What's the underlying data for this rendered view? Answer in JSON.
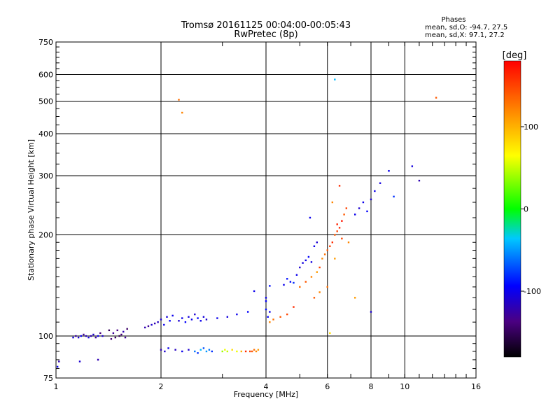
{
  "chart_data": {
    "type": "scatter",
    "title": "Tromsø 20161125 00:04:00-00:05:43",
    "subtitle": "RwPretec (8p)",
    "xlabel": "Frequency [MHz]",
    "ylabel": "Stationary phase Virtual Height [km]",
    "x_scale": "log",
    "y_scale": "log",
    "xlim": [
      1,
      16
    ],
    "ylim": [
      75,
      750
    ],
    "x_ticks": [
      1,
      2,
      4,
      6,
      8,
      10,
      16
    ],
    "x_tick_labels": [
      "1",
      "2",
      "4",
      "6",
      "8",
      "10",
      "16"
    ],
    "y_ticks": [
      75,
      100,
      200,
      300,
      400,
      500,
      600,
      750
    ],
    "y_tick_labels": [
      "75",
      "100",
      "200",
      "300",
      "400",
      "500",
      "600",
      "750"
    ],
    "grid": true,
    "legend": {
      "title": "Phases",
      "lines": [
        "mean, sd,O: -94.7, 27.5",
        "mean, sd,X:  97.1, 27.2"
      ],
      "placement": "top-right"
    },
    "colorbar": {
      "label": "[deg]",
      "range": [
        -180,
        180
      ],
      "ticks": [
        100,
        0,
        -100
      ],
      "tick_labels": [
        "100",
        "0",
        "-100"
      ],
      "colormap": "rainbow"
    },
    "series": [
      {
        "mode": "O",
        "points": [
          [
            1.02,
            84,
            -120
          ],
          [
            1.01,
            81,
            -100
          ],
          [
            1.17,
            84,
            -110
          ],
          [
            1.32,
            85,
            -120
          ],
          [
            1.12,
            99,
            -105
          ],
          [
            1.14,
            100,
            -125
          ],
          [
            1.16,
            99,
            -110
          ],
          [
            1.18,
            100,
            -100
          ],
          [
            1.2,
            101,
            -130
          ],
          [
            1.22,
            100,
            -115
          ],
          [
            1.24,
            99,
            -105
          ],
          [
            1.26,
            100,
            -120
          ],
          [
            1.28,
            101,
            -110
          ],
          [
            1.3,
            99,
            -125
          ],
          [
            1.32,
            100,
            -100
          ],
          [
            1.34,
            102,
            -140
          ],
          [
            1.36,
            100,
            -110
          ],
          [
            1.42,
            104,
            -150
          ],
          [
            1.44,
            98,
            -140
          ],
          [
            1.46,
            102,
            -130
          ],
          [
            1.48,
            99,
            -145
          ],
          [
            1.5,
            104,
            -135
          ],
          [
            1.52,
            100,
            -150
          ],
          [
            1.54,
            101,
            -140
          ],
          [
            1.56,
            103,
            -120
          ],
          [
            1.58,
            99,
            -130
          ],
          [
            1.6,
            105,
            -145
          ],
          [
            1.8,
            106,
            -120
          ],
          [
            1.84,
            107,
            -130
          ],
          [
            1.88,
            108,
            -110
          ],
          [
            1.92,
            109,
            -120
          ],
          [
            1.96,
            110,
            -115
          ],
          [
            2.0,
            112,
            -110
          ],
          [
            2.04,
            108,
            -100
          ],
          [
            2.08,
            114,
            -105
          ],
          [
            2.12,
            111,
            -95
          ],
          [
            2.16,
            115,
            -100
          ],
          [
            2.25,
            111,
            -110
          ],
          [
            2.3,
            113,
            -100
          ],
          [
            2.35,
            110,
            -95
          ],
          [
            2.4,
            114,
            -105
          ],
          [
            2.45,
            112,
            -100
          ],
          [
            2.5,
            116,
            -110
          ],
          [
            2.55,
            113,
            -95
          ],
          [
            2.6,
            111,
            -100
          ],
          [
            2.65,
            114,
            -105
          ],
          [
            2.7,
            112,
            -110
          ],
          [
            2.9,
            113,
            -100
          ],
          [
            3.1,
            114,
            -105
          ],
          [
            3.3,
            116,
            -100
          ],
          [
            3.55,
            118,
            -95
          ],
          [
            3.7,
            136,
            -100
          ],
          [
            4.0,
            120,
            -90
          ],
          [
            4.05,
            114,
            -95
          ],
          [
            4.1,
            118,
            -100
          ],
          [
            4.0,
            127,
            -95
          ],
          [
            4.1,
            141,
            -90
          ],
          [
            4.0,
            130,
            -100
          ],
          [
            4.5,
            142,
            -100
          ],
          [
            4.6,
            148,
            -90
          ],
          [
            4.7,
            145,
            -95
          ],
          [
            4.8,
            144,
            -80
          ],
          [
            4.9,
            152,
            -100
          ],
          [
            5.0,
            160,
            -110
          ],
          [
            5.1,
            165,
            -105
          ],
          [
            5.2,
            168,
            -100
          ],
          [
            5.3,
            172,
            -95
          ],
          [
            5.4,
            166,
            -105
          ],
          [
            5.5,
            185,
            -100
          ],
          [
            5.6,
            190,
            -110
          ],
          [
            5.35,
            225,
            -100
          ],
          [
            7.2,
            230,
            -100
          ],
          [
            7.4,
            240,
            -110
          ],
          [
            7.6,
            250,
            -100
          ],
          [
            7.8,
            235,
            -95
          ],
          [
            8.0,
            255,
            -110
          ],
          [
            8.2,
            270,
            -100
          ],
          [
            8.5,
            285,
            -105
          ],
          [
            9.0,
            310,
            -100
          ],
          [
            9.3,
            260,
            -80
          ],
          [
            10.5,
            320,
            -105
          ],
          [
            11.0,
            290,
            -120
          ],
          [
            8.0,
            118,
            -110
          ],
          [
            6.3,
            580,
            -40
          ]
        ]
      },
      {
        "mode": "X",
        "points": [
          [
            2.0,
            91,
            -120
          ],
          [
            2.05,
            90,
            -110
          ],
          [
            2.1,
            92,
            -100
          ],
          [
            2.2,
            91,
            -115
          ],
          [
            2.3,
            90,
            -100
          ],
          [
            2.4,
            91,
            -110
          ],
          [
            2.5,
            90,
            -60
          ],
          [
            2.55,
            89,
            -80
          ],
          [
            2.6,
            91,
            -40
          ],
          [
            2.65,
            92,
            -70
          ],
          [
            2.7,
            90,
            -50
          ],
          [
            2.75,
            91,
            -60
          ],
          [
            2.8,
            90,
            -80
          ],
          [
            3.0,
            90,
            40
          ],
          [
            3.05,
            91,
            60
          ],
          [
            3.1,
            90,
            50
          ],
          [
            3.2,
            91,
            80
          ],
          [
            3.3,
            90,
            60
          ],
          [
            3.4,
            90,
            100
          ],
          [
            3.5,
            90,
            160
          ],
          [
            3.6,
            90,
            150
          ],
          [
            3.65,
            90,
            140
          ],
          [
            3.7,
            91,
            130
          ],
          [
            3.75,
            90,
            120
          ],
          [
            3.8,
            91,
            110
          ],
          [
            4.1,
            110,
            120
          ],
          [
            4.2,
            112,
            130
          ],
          [
            4.4,
            114,
            140
          ],
          [
            4.6,
            116,
            150
          ],
          [
            4.8,
            122,
            160
          ],
          [
            5.0,
            140,
            130
          ],
          [
            5.2,
            145,
            140
          ],
          [
            5.4,
            150,
            120
          ],
          [
            5.6,
            155,
            110
          ],
          [
            5.7,
            160,
            150
          ],
          [
            5.8,
            170,
            120
          ],
          [
            5.9,
            175,
            130
          ],
          [
            6.0,
            180,
            140
          ],
          [
            6.1,
            185,
            150
          ],
          [
            6.2,
            190,
            160
          ],
          [
            6.3,
            200,
            140
          ],
          [
            6.4,
            205,
            150
          ],
          [
            6.5,
            210,
            160
          ],
          [
            6.6,
            220,
            170
          ],
          [
            6.7,
            230,
            140
          ],
          [
            6.8,
            240,
            150
          ],
          [
            6.5,
            280,
            160
          ],
          [
            6.9,
            190,
            120
          ],
          [
            6.3,
            170,
            110
          ],
          [
            6.0,
            140,
            130
          ],
          [
            5.5,
            130,
            140
          ],
          [
            5.7,
            135,
            120
          ],
          [
            6.2,
            250,
            120
          ],
          [
            6.6,
            195,
            150
          ],
          [
            6.4,
            215,
            165
          ],
          [
            2.25,
            505,
            130
          ],
          [
            2.3,
            462,
            120
          ],
          [
            12.3,
            512,
            140
          ],
          [
            6.1,
            102,
            80
          ],
          [
            7.2,
            130,
            110
          ]
        ]
      }
    ]
  }
}
